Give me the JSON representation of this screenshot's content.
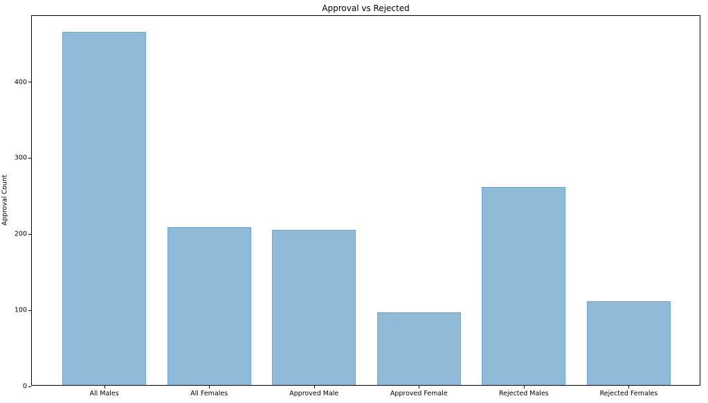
{
  "chart_data": {
    "type": "bar",
    "title": "Approval vs Rejected",
    "xlabel": "",
    "ylabel": "Approval Count",
    "categories": [
      "All Males",
      "All Females",
      "Approved Male",
      "Approved Female",
      "Rejected Males",
      "Rejected Females"
    ],
    "values": [
      464,
      208,
      204,
      96,
      260,
      110
    ],
    "yticks": [
      0,
      100,
      200,
      300,
      400
    ],
    "ylim": [
      0,
      487
    ],
    "xlim": [
      -0.69,
      5.69
    ],
    "bar_width_units": 0.8,
    "grid": false,
    "legend_position": "none",
    "colors": {
      "bar_fill": "#8FBBD9",
      "bar_edge": "#6FA5CE",
      "axis": "#000000",
      "text": "#000000",
      "background": "#ffffff"
    }
  }
}
